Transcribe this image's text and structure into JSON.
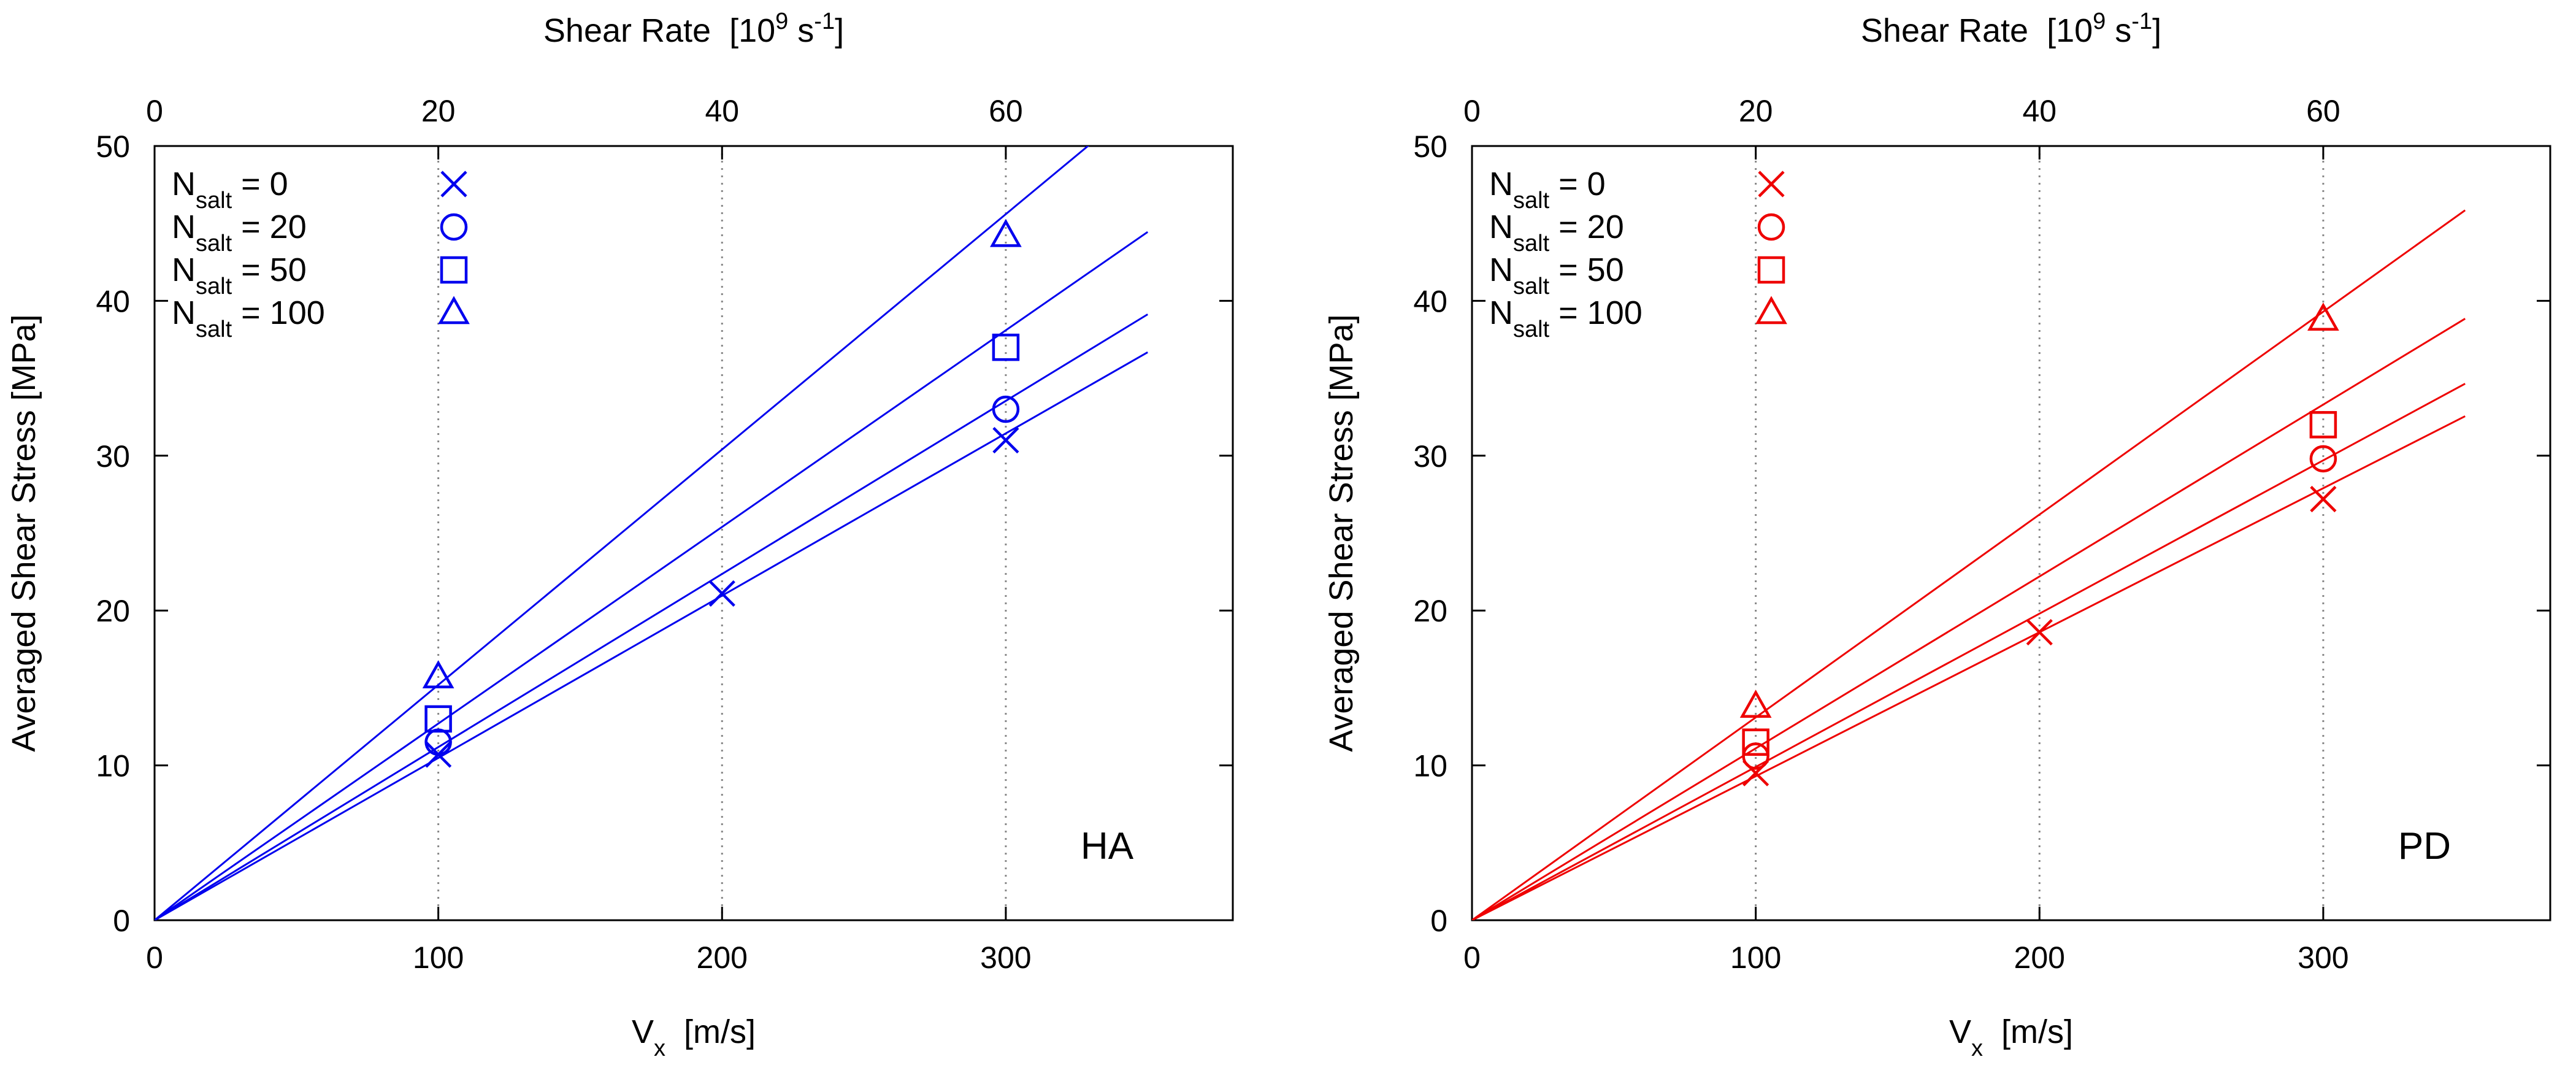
{
  "chart_data": [
    {
      "type": "scatter",
      "panel_label": "HA",
      "color": "#0000ee",
      "xlabel": {
        "main": "V",
        "sub": "x",
        "unit": "[m/s]"
      },
      "ylabel": "Averaged Shear Stress  [MPa]",
      "top_axis": {
        "label": "Shear Rate",
        "unit": {
          "open": "[10",
          "exp": "9",
          "mid": " s",
          "exp2": "-1",
          "close": "]"
        },
        "ticks": [
          "0",
          "20",
          "40",
          "60"
        ],
        "tick_positions_x": [
          0,
          100,
          200,
          300
        ]
      },
      "xlim": [
        0,
        380
      ],
      "ylim": [
        0,
        50
      ],
      "xticks": [
        0,
        100,
        200,
        300
      ],
      "yticks": [
        0,
        10,
        20,
        30,
        40,
        50
      ],
      "gridlines_x": [
        100,
        200,
        300
      ],
      "legend_position": "top-left",
      "series": [
        {
          "name": "N_salt = 0",
          "label_main": "N",
          "label_sub": "salt",
          "label_rest": " = 0",
          "marker": "x",
          "x": [
            100,
            200,
            300
          ],
          "y": [
            10.7,
            21.1,
            31.0
          ],
          "fit_slope": 0.1048
        },
        {
          "name": "N_salt = 20",
          "label_main": "N",
          "label_sub": "salt",
          "label_rest": " = 20",
          "marker": "circle",
          "x": [
            100,
            300
          ],
          "y": [
            11.5,
            33.0
          ],
          "fit_slope": 0.1118
        },
        {
          "name": "N_salt = 50",
          "label_main": "N",
          "label_sub": "salt",
          "label_rest": " = 50",
          "marker": "square",
          "x": [
            100,
            300
          ],
          "y": [
            13.0,
            37.0
          ],
          "fit_slope": 0.127
        },
        {
          "name": "N_salt = 100",
          "label_main": "N",
          "label_sub": "salt",
          "label_rest": " = 100",
          "marker": "triangle",
          "x": [
            100,
            300
          ],
          "y": [
            15.7,
            44.2
          ],
          "fit_slope": 0.152
        }
      ]
    },
    {
      "type": "scatter",
      "panel_label": "PD",
      "color": "#ee0000",
      "xlabel": {
        "main": "V",
        "sub": "x",
        "unit": "[m/s]"
      },
      "ylabel": "Averaged Shear Stress  [MPa]",
      "top_axis": {
        "label": "Shear Rate",
        "unit": {
          "open": "[10",
          "exp": "9",
          "mid": " s",
          "exp2": "-1",
          "close": "]"
        },
        "ticks": [
          "0",
          "20",
          "40",
          "60"
        ],
        "tick_positions_x": [
          0,
          100,
          200,
          300
        ]
      },
      "xlim": [
        0,
        380
      ],
      "ylim": [
        0,
        50
      ],
      "xticks": [
        0,
        100,
        200,
        300
      ],
      "yticks": [
        0,
        10,
        20,
        30,
        40,
        50
      ],
      "gridlines_x": [
        100,
        200,
        300
      ],
      "legend_position": "top-left",
      "series": [
        {
          "name": "N_salt = 0",
          "label_main": "N",
          "label_sub": "salt",
          "label_rest": " = 0",
          "marker": "x",
          "x": [
            100,
            200,
            300
          ],
          "y": [
            9.5,
            18.6,
            27.2
          ],
          "fit_slope": 0.093
        },
        {
          "name": "N_salt = 20",
          "label_main": "N",
          "label_sub": "salt",
          "label_rest": " = 20",
          "marker": "circle",
          "x": [
            100,
            300
          ],
          "y": [
            10.6,
            29.8
          ],
          "fit_slope": 0.099
        },
        {
          "name": "N_salt = 50",
          "label_main": "N",
          "label_sub": "salt",
          "label_rest": " = 50",
          "marker": "square",
          "x": [
            100,
            300
          ],
          "y": [
            11.5,
            32.0
          ],
          "fit_slope": 0.111
        },
        {
          "name": "N_salt = 100",
          "label_main": "N",
          "label_sub": "salt",
          "label_rest": " = 100",
          "marker": "triangle",
          "x": [
            100,
            300
          ],
          "y": [
            13.8,
            38.8
          ],
          "fit_slope": 0.131
        }
      ]
    }
  ]
}
